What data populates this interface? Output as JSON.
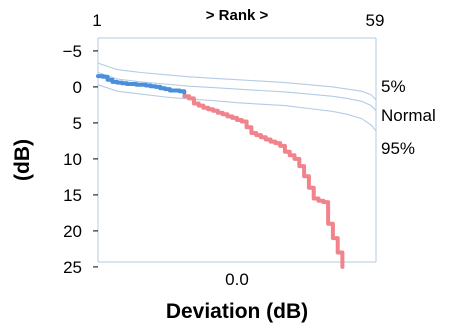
{
  "chart_data": {
    "type": "line",
    "top_axis_label": "> Rank >",
    "rank_range": [
      "1",
      "59"
    ],
    "xlabel": "Deviation (dB)",
    "x_tick_labels": [
      "0.0"
    ],
    "ylabel": "(dB)",
    "y_inverted": true,
    "ylim": [
      -7,
      25
    ],
    "y_ticks": [
      -5,
      0,
      5,
      10,
      15,
      20,
      25
    ],
    "xlim": [
      1,
      59
    ],
    "reference_curves": [
      {
        "label": "5%",
        "color": "#b3cce6",
        "x": [
          1,
          5,
          10,
          15,
          20,
          25,
          30,
          35,
          40,
          45,
          50,
          53,
          56,
          58,
          59
        ],
        "y": [
          -3.3,
          -2.4,
          -2.0,
          -1.7,
          -1.4,
          -1.2,
          -1.0,
          -0.8,
          -0.6,
          -0.3,
          0.0,
          0.3,
          0.6,
          1.1,
          1.8
        ]
      },
      {
        "label": "Normal",
        "color": "#b3cce6",
        "x": [
          1,
          5,
          10,
          15,
          20,
          25,
          30,
          35,
          40,
          45,
          50,
          53,
          56,
          58,
          59
        ],
        "y": [
          -2.0,
          -1.1,
          -0.7,
          -0.4,
          -0.1,
          0.1,
          0.3,
          0.5,
          0.7,
          1.0,
          1.3,
          1.6,
          2.0,
          2.6,
          3.3
        ]
      },
      {
        "label": "95%",
        "color": "#b3cce6",
        "x": [
          1,
          5,
          10,
          15,
          20,
          25,
          30,
          35,
          40,
          45,
          50,
          53,
          56,
          58,
          59
        ],
        "y": [
          -0.3,
          0.6,
          1.0,
          1.4,
          1.7,
          1.9,
          2.2,
          2.4,
          2.6,
          3.0,
          3.4,
          3.8,
          4.4,
          5.3,
          6.1
        ]
      }
    ],
    "series": [
      {
        "color": "#4a8fdb",
        "x": [
          1,
          2,
          3,
          4,
          5,
          6,
          7,
          8,
          9,
          10,
          11,
          12,
          13,
          14,
          15,
          16,
          17,
          18,
          19
        ],
        "y": [
          -1.5,
          -1.4,
          -1.0,
          -0.7,
          -0.6,
          -0.5,
          -0.4,
          -0.4,
          -0.3,
          -0.3,
          -0.2,
          -0.1,
          0.0,
          0.2,
          0.3,
          0.5,
          0.5,
          0.6,
          0.8
        ]
      },
      {
        "color": "#f0838b",
        "x": [
          19,
          20,
          21,
          22,
          23,
          24,
          25,
          26,
          27,
          28,
          29,
          30,
          31,
          32,
          33,
          34,
          35,
          36,
          37,
          38,
          39,
          40,
          41,
          42,
          43,
          44,
          45,
          46,
          47,
          48,
          49,
          50,
          51,
          52
        ],
        "y": [
          1.3,
          1.6,
          2.3,
          2.6,
          2.9,
          3.1,
          3.3,
          3.6,
          3.8,
          4.1,
          4.3,
          4.6,
          4.8,
          5.6,
          6.4,
          6.7,
          7.0,
          7.3,
          7.6,
          7.8,
          8.2,
          9.0,
          9.5,
          10.0,
          11.0,
          12.4,
          14.0,
          15.5,
          15.8,
          16.0,
          19.0,
          21.0,
          23.0,
          25.0
        ]
      }
    ],
    "grid": false
  }
}
